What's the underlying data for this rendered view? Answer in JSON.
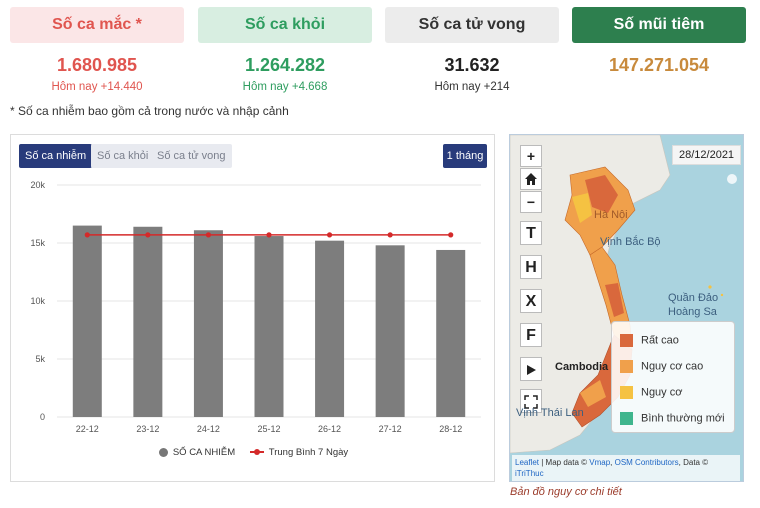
{
  "stats": [
    {
      "title": "Số ca mắc *",
      "value": "1.680.985",
      "today": "Hôm nay +14.440"
    },
    {
      "title": "Số ca khỏi",
      "value": "1.264.282",
      "today": "Hôm nay +4.668"
    },
    {
      "title": "Số ca tử vong",
      "value": "31.632",
      "today": "Hôm nay +214"
    },
    {
      "title": "Số mũi tiêm",
      "value": "147.271.054",
      "today": ""
    }
  ],
  "note": "* Số ca nhiễm bao gồm cả trong nước và nhập cảnh",
  "chart": {
    "tabs": [
      "Số ca nhiễm",
      "Số ca khỏi",
      "Số ca tử vong"
    ],
    "range": "1 tháng",
    "legend": {
      "bars": "SỐ CA NHIỄM",
      "line": "Trung Bình 7 Ngày"
    }
  },
  "chart_data": {
    "type": "bar",
    "categories": [
      "22-12",
      "23-12",
      "24-12",
      "25-12",
      "26-12",
      "27-12",
      "28-12"
    ],
    "series": [
      {
        "name": "SỐ CA NHIỄM",
        "type": "bar",
        "color": "#7d7d7d",
        "values": [
          16500,
          16400,
          16100,
          15600,
          15200,
          14800,
          14400
        ]
      },
      {
        "name": "Trung Bình 7 Ngày",
        "type": "line",
        "color": "#d42a2a",
        "values": [
          15700,
          15700,
          15700,
          15700,
          15700,
          15700,
          15700
        ]
      }
    ],
    "ylim": [
      0,
      20000
    ],
    "yticks": [
      "0",
      "5k",
      "10k",
      "15k",
      "20k"
    ],
    "grid": true
  },
  "map": {
    "date": "28/12/2021",
    "controls": [
      "+",
      "−",
      "T",
      "H",
      "X",
      "F"
    ],
    "labels": {
      "hanoi": "Hà Nội",
      "bacbo": "Vịnh Bắc Bộ",
      "hoangsa1": "Quần Đảo",
      "hoangsa2": "Hoàng Sa",
      "cambodia": "Cambodia",
      "thailand": "Vịnh Thái Lan"
    },
    "legend": [
      {
        "label": "Rất cao",
        "color": "#d9683c"
      },
      {
        "label": "Nguy cơ cao",
        "color": "#f0a04b"
      },
      {
        "label": "Nguy cơ",
        "color": "#f5c242"
      },
      {
        "label": "Bình thường mới",
        "color": "#3fb58d"
      }
    ],
    "attribution_leaflet": "Leaflet",
    "attribution_mid": " | Map data © ",
    "attribution_vmap": "Vmap",
    "attribution_sep": ", ",
    "attribution_osm": "OSM Contributors",
    "attribution_end": ", Data © ",
    "attribution_itrithuc": "iTriThuc",
    "caption": "Bản đồ nguy cơ chi tiết"
  }
}
